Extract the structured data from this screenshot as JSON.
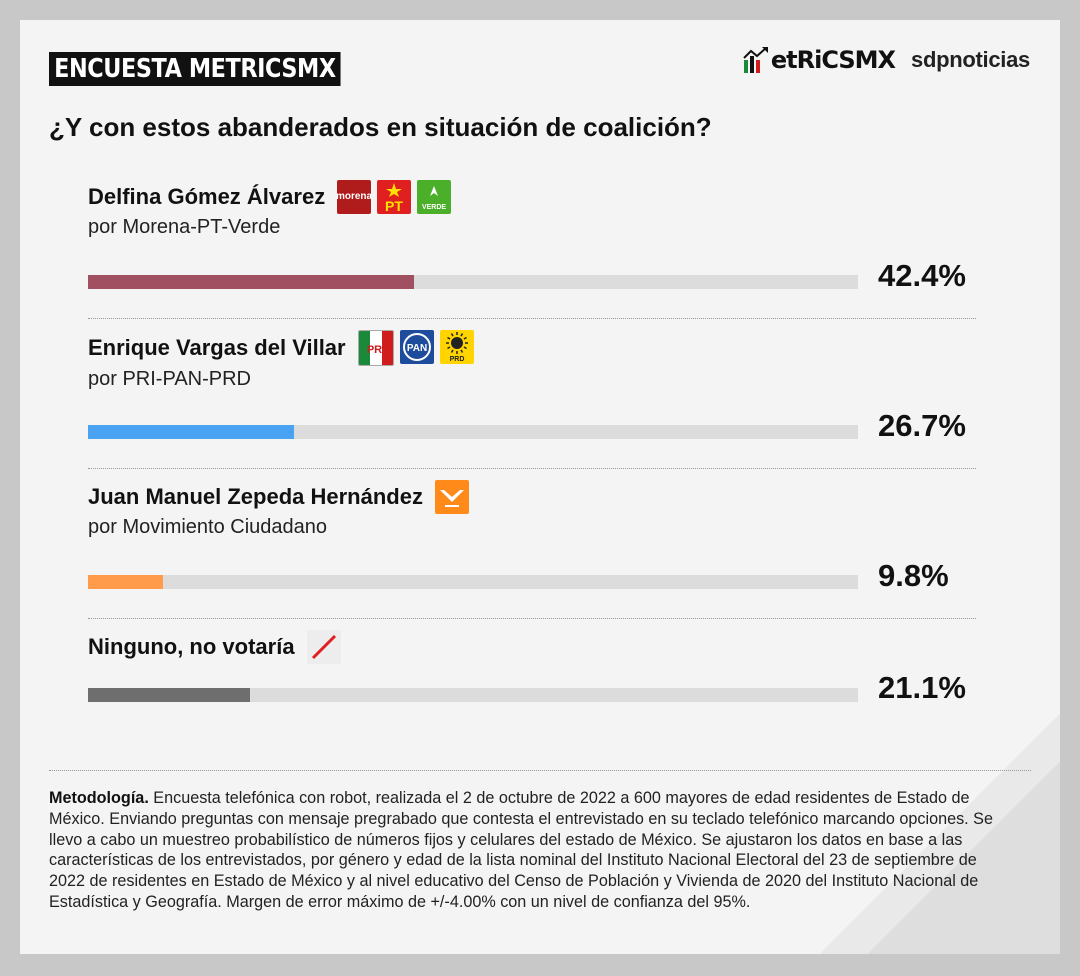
{
  "header": {
    "tag": "ENCUESTA METRICSMX",
    "logo_metrics": "etRiCSMX",
    "logo_sdp": "sdpnoticias"
  },
  "question": "¿Y con estos abanderados en situación de coalición?",
  "chart_data": {
    "type": "bar",
    "title": "¿Y con estos abanderados en situación de coalición?",
    "categories": [
      "Delfina Gómez Álvarez",
      "Enrique Vargas del Villar",
      "Juan Manuel Zepeda Hernández",
      "Ninguno, no votaría"
    ],
    "values": [
      42.4,
      26.7,
      9.8,
      21.1
    ],
    "ylim": [
      0,
      100
    ],
    "grid": false
  },
  "candidates": [
    {
      "name": "Delfina Gómez Álvarez",
      "party": "por Morena-PT-Verde",
      "value": 42.4,
      "label": "42.4%",
      "color": "#a05060",
      "badges": [
        {
          "icon": "morena-logo",
          "text": "morena",
          "bg": "#b01c1c",
          "fg": "#ffffff"
        },
        {
          "icon": "pt-logo",
          "text": "PT",
          "bg": "#e02020",
          "fg": "#ffe000"
        },
        {
          "icon": "verde-logo",
          "text": "VERDE",
          "bg": "#4caf2a",
          "fg": "#ffffff"
        }
      ]
    },
    {
      "name": "Enrique Vargas del Villar",
      "party": "por PRI-PAN-PRD",
      "value": 26.7,
      "label": "26.7%",
      "color": "#4aa3f2",
      "badges": [
        {
          "icon": "pri-logo",
          "text": "PRI",
          "bg": "#ffffff",
          "fg": "#d01c1c"
        },
        {
          "icon": "pan-logo",
          "text": "PAN",
          "bg": "#1e4c9c",
          "fg": "#ffffff"
        },
        {
          "icon": "prd-logo",
          "text": "PRD",
          "bg": "#ffd400",
          "fg": "#222222"
        }
      ]
    },
    {
      "name": "Juan Manuel Zepeda Hernández",
      "party": "por Movimiento Ciudadano",
      "value": 9.8,
      "label": "9.8%",
      "color": "#ff9b4a",
      "badges": [
        {
          "icon": "movimiento-ciudadano-logo",
          "text": "",
          "bg": "#ff8a1a",
          "fg": "#ffffff"
        }
      ]
    },
    {
      "name": "Ninguno, no votaría",
      "party": "",
      "value": 21.1,
      "label": "21.1%",
      "color": "#6e6e6e",
      "badges": [
        {
          "icon": "slash-icon",
          "text": "",
          "bg": "#ededed",
          "fg": "#e02020"
        }
      ]
    }
  ],
  "methodology": {
    "label": "Metodología.",
    "text": " Encuesta telefónica con robot, realizada el 2 de octubre de 2022 a 600 mayores de edad residentes de Estado de México. Enviando preguntas con mensaje pregrabado que contesta el entrevistado en su teclado telefónico marcando opciones. Se llevo a cabo un muestreo probabilístico de números fijos y celulares del estado de México. Se ajustaron los datos en base a las características de los entrevistados, por género y edad de la lista nominal del Instituto Nacional Electoral del 23 de septiembre de 2022 de residentes en Estado de México y al nivel educativo del Censo de Población y Vivienda de 2020 del Instituto Nacional de Estadística y Geografía. Margen de error máximo de +/-4.00% con un nivel de confianza del 95%."
  }
}
